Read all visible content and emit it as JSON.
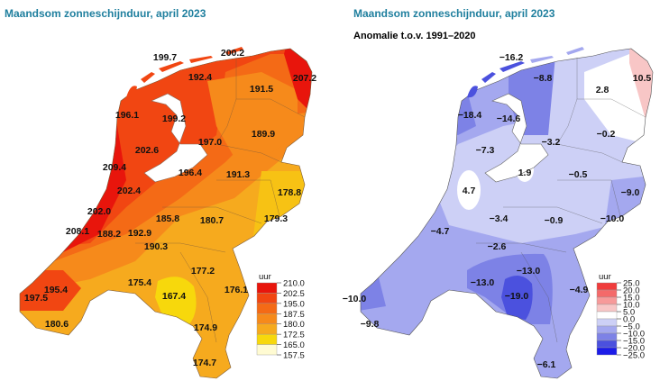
{
  "left_map": {
    "title": "Maandsom zonneschijnduur, april 2023",
    "legend_unit": "uur",
    "legend_ticks": [
      "210.0",
      "202.5",
      "195.0",
      "187.5",
      "180.0",
      "172.5",
      "165.0",
      "157.5"
    ],
    "legend_colors": [
      "#e8150c",
      "#f14612",
      "#f46a16",
      "#f68a1b",
      "#f6aa1e",
      "#f7d80c",
      "#fffbd2"
    ],
    "values": [
      "199.7",
      "200.2",
      "207.2",
      "192.4",
      "191.5",
      "196.1",
      "199.2",
      "189.9",
      "197.0",
      "202.6",
      "209.4",
      "196.4",
      "191.3",
      "202.4",
      "178.8",
      "202.0",
      "185.8",
      "180.7",
      "179.3",
      "208.1",
      "188.2",
      "192.9",
      "190.3",
      "177.2",
      "175.4",
      "176.1",
      "167.4",
      "195.4",
      "197.5",
      "180.6",
      "174.9",
      "174.7"
    ]
  },
  "right_map": {
    "title": "Maandsom zonneschijnduur, april 2023",
    "subtitle": "Anomalie t.o.v. 1991–2020",
    "legend_unit": "uur",
    "legend_ticks": [
      "25.0",
      "20.0",
      "15.0",
      "10.0",
      "5.0",
      "0.0",
      "−5.0",
      "−10.0",
      "−15.0",
      "−20.0",
      "−25.0"
    ],
    "legend_colors": [
      "#f03c3c",
      "#f46a6a",
      "#f79a9a",
      "#f8c6c6",
      "#ffffff",
      "#cdd0f6",
      "#a4a8ef",
      "#7d82e6",
      "#4b51de",
      "#1c1ce8"
    ],
    "values": [
      "−16.2",
      "−8.8",
      "10.5",
      "2.8",
      "−18.4",
      "−14.6",
      "−0.2",
      "−3.2",
      "−7.3",
      "1.9",
      "−0.5",
      "4.7",
      "−9.0",
      "−3.4",
      "−0.9",
      "−10.0",
      "−4.7",
      "−2.6",
      "−13.0",
      "−13.0",
      "−4.9",
      "−19.0",
      "−10.0",
      "−9.8",
      "−6.1"
    ]
  }
}
